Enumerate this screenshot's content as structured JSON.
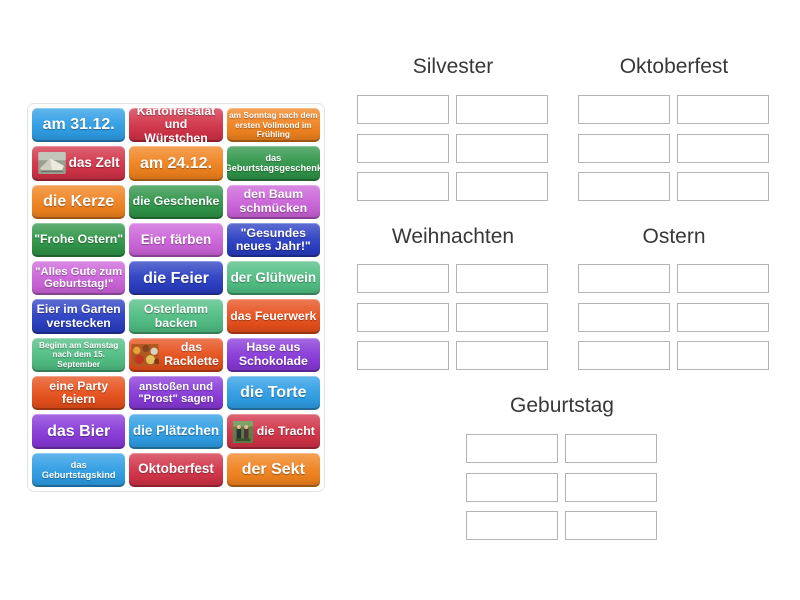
{
  "page": {
    "background": "#ffffff"
  },
  "groups": [
    {
      "id": "silvester",
      "label": "Silvester",
      "slot_count": 6
    },
    {
      "id": "oktoberfest",
      "label": "Oktoberfest",
      "slot_count": 6
    },
    {
      "id": "weihnachten",
      "label": "Weihnachten",
      "slot_count": 6
    },
    {
      "id": "ostern",
      "label": "Ostern",
      "slot_count": 6
    },
    {
      "id": "geburtstag",
      "label": "Geburtstag",
      "slot_count": 6
    }
  ],
  "palette": {
    "blue": "#2e9de4",
    "crimson": "#d13247",
    "orange": "#f0821e",
    "green": "#2e9447",
    "orchid": "#cb63d9",
    "darkblue": "#2a3ec2",
    "seagreen": "#4fbd82",
    "orangered": "#e64f1b",
    "purple": "#8739d8"
  },
  "tiles": [
    {
      "label": "am 31.12.",
      "color": "#2e9de4",
      "text_size": "xl"
    },
    {
      "label": "Kartoffelsalat und Würstchen",
      "color": "#d13247",
      "text_size": "md"
    },
    {
      "label": "am Sonntag nach dem ersten Vollmond im Frühling",
      "color": "#f0821e",
      "text_size": "xs"
    },
    {
      "label": "das Zelt",
      "color": "#d13247",
      "text_size": "lg",
      "image": "tent-photo"
    },
    {
      "label": "am 24.12.",
      "color": "#f0821e",
      "text_size": "xl"
    },
    {
      "label": "das Geburtstagsgeschenk",
      "color": "#2e9447",
      "text_size": "sm"
    },
    {
      "label": "die Kerze",
      "color": "#f0821e",
      "text_size": "xl"
    },
    {
      "label": "die Geschenke",
      "color": "#2e9447",
      "text_size": "md"
    },
    {
      "label": "den Baum schmücken",
      "color": "#cb63d9",
      "text_size": "md"
    },
    {
      "label": "\"Frohe Ostern\"",
      "color": "#2e9447",
      "text_size": "md"
    },
    {
      "label": "Eier färben",
      "color": "#cb63d9",
      "text_size": "lg"
    },
    {
      "label": "\"Gesundes neues Jahr!\"",
      "color": "#2a3ec2",
      "text_size": "md"
    },
    {
      "label": "\"Alles Gute zum Geburtstag!\"",
      "color": "#cb63d9",
      "text_size": "md2"
    },
    {
      "label": "die Feier",
      "color": "#2a3ec2",
      "text_size": "xl"
    },
    {
      "label": "der Glühwein",
      "color": "#4fbd82",
      "text_size": "lg"
    },
    {
      "label": "Eier im Garten verstecken",
      "color": "#2a3ec2",
      "text_size": "md"
    },
    {
      "label": "Osterlamm backen",
      "color": "#4fbd82",
      "text_size": "md"
    },
    {
      "label": "das Feuerwerk",
      "color": "#e64f1b",
      "text_size": "md"
    },
    {
      "label": "Beginn am Samstag nach dem 15. September",
      "color": "#4fbd82",
      "text_size": "xs"
    },
    {
      "label": "das Racklette",
      "color": "#e64f1b",
      "text_size": "md",
      "image": "raclette-photo"
    },
    {
      "label": "Hase aus Schokolade",
      "color": "#8739d8",
      "text_size": "md"
    },
    {
      "label": "eine Party feiern",
      "color": "#e64f1b",
      "text_size": "md"
    },
    {
      "label": "anstoßen und \"Prost\" sagen",
      "color": "#8739d8",
      "text_size": "md2"
    },
    {
      "label": "die Torte",
      "color": "#2e9de4",
      "text_size": "xl"
    },
    {
      "label": "das Bier",
      "color": "#8739d8",
      "text_size": "xl"
    },
    {
      "label": "die Plätzchen",
      "color": "#2e9de4",
      "text_size": "lg"
    },
    {
      "label": "die Tracht",
      "color": "#d13247",
      "text_size": "md",
      "image": "tracht-photo"
    },
    {
      "label": "das Geburtstagskind",
      "color": "#2e9de4",
      "text_size": "sm"
    },
    {
      "label": "Oktoberfest",
      "color": "#d13247",
      "text_size": "lg"
    },
    {
      "label": "der Sekt",
      "color": "#f0821e",
      "text_size": "xl"
    }
  ]
}
